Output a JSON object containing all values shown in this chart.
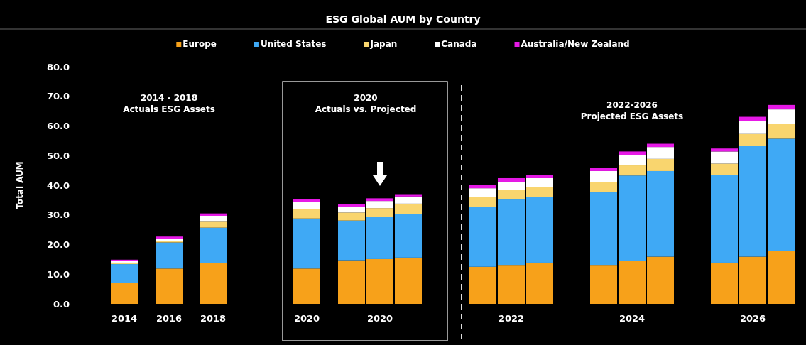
{
  "chart_data": {
    "type": "bar",
    "stacked": true,
    "title": "ESG Global AUM by Country",
    "ylabel": "Total AUM",
    "categories": [
      "2014",
      "2016",
      "2018",
      "2020",
      null,
      "2020",
      null,
      null,
      "2022",
      null,
      null,
      "2024",
      null,
      null,
      "2026",
      null
    ],
    "series": [
      {
        "name": "Europe",
        "color": "#f7a11a",
        "values": [
          7.0,
          11.9,
          13.7,
          11.9,
          14.7,
          15.1,
          15.6,
          12.5,
          12.9,
          13.9,
          12.9,
          14.4,
          15.9,
          13.9,
          15.9,
          17.9
        ]
      },
      {
        "name": "United States",
        "color": "#3fa9f5",
        "values": [
          6.4,
          8.8,
          12.0,
          16.9,
          13.4,
          14.2,
          14.7,
          20.3,
          22.3,
          22.1,
          24.7,
          28.9,
          28.9,
          29.5,
          37.5,
          37.8
        ]
      },
      {
        "name": "Japan",
        "color": "#f9d56e",
        "values": [
          0.5,
          0.5,
          2.0,
          3.1,
          2.7,
          3.0,
          3.5,
          3.3,
          3.3,
          3.3,
          3.4,
          3.4,
          4.1,
          3.9,
          3.9,
          4.9
        ]
      },
      {
        "name": "Canada",
        "color": "#ffffff",
        "values": [
          0.5,
          0.7,
          2.0,
          2.4,
          2.0,
          2.4,
          2.4,
          2.9,
          2.7,
          3.1,
          3.8,
          3.6,
          4.0,
          4.1,
          4.3,
          5.0
        ]
      },
      {
        "name": "Australia/New Zealand",
        "color": "#e619e6",
        "values": [
          0.5,
          0.8,
          0.8,
          1.0,
          0.8,
          0.9,
          0.8,
          1.2,
          1.2,
          1.0,
          1.0,
          1.1,
          1.1,
          1.0,
          1.5,
          1.5
        ]
      }
    ],
    "ylim": [
      0,
      80
    ],
    "yticks": [
      {
        "value": 0,
        "label": "0.0"
      },
      {
        "value": 10,
        "label": "10.0"
      },
      {
        "value": 20,
        "label": "20.0"
      },
      {
        "value": 30,
        "label": "30.0"
      },
      {
        "value": 40,
        "label": "40.0"
      },
      {
        "value": 50,
        "label": "50.0"
      },
      {
        "value": 60,
        "label": "60.0"
      },
      {
        "value": 70,
        "label": "70.0"
      },
      {
        "value": 80,
        "label": "80.0"
      }
    ],
    "annotations": [
      "2014 - 2018\nActuals ESG Assets",
      "2020\nActuals vs. Projected",
      "2022-2026\nProjected ESG Assets"
    ],
    "legend": "top",
    "grid": false
  }
}
